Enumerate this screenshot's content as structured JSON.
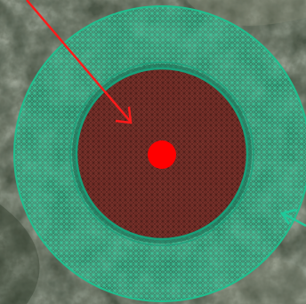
{
  "map": {
    "basemap": "satellite-terrain",
    "colors": {
      "terrain_base": "#4a5546",
      "terrain_light": "#8a8c79",
      "terrain_dark": "#25301f",
      "outer_zone_fill": "#1f8a6a",
      "outer_zone_stroke": "#1fbf8e",
      "inner_zone_fill": "#a01e1e",
      "inner_zone_stroke": "#18a07a",
      "center_marker": "#ff0000",
      "red_arrow": "#ff1a1a",
      "teal_arrow": "#1fc99a"
    },
    "zones": [
      {
        "name": "outer-buffer-zone",
        "pattern": "crosshatch"
      },
      {
        "name": "inner-impact-zone",
        "pattern": "crosshatch"
      }
    ],
    "markers": [
      {
        "name": "center-point-marker",
        "icon": "filled-circle"
      }
    ],
    "arrows": [
      {
        "name": "red-pointer-arrow",
        "icon": "arrow-icon"
      },
      {
        "name": "teal-pointer-arrow",
        "icon": "arrow-icon"
      }
    ]
  }
}
